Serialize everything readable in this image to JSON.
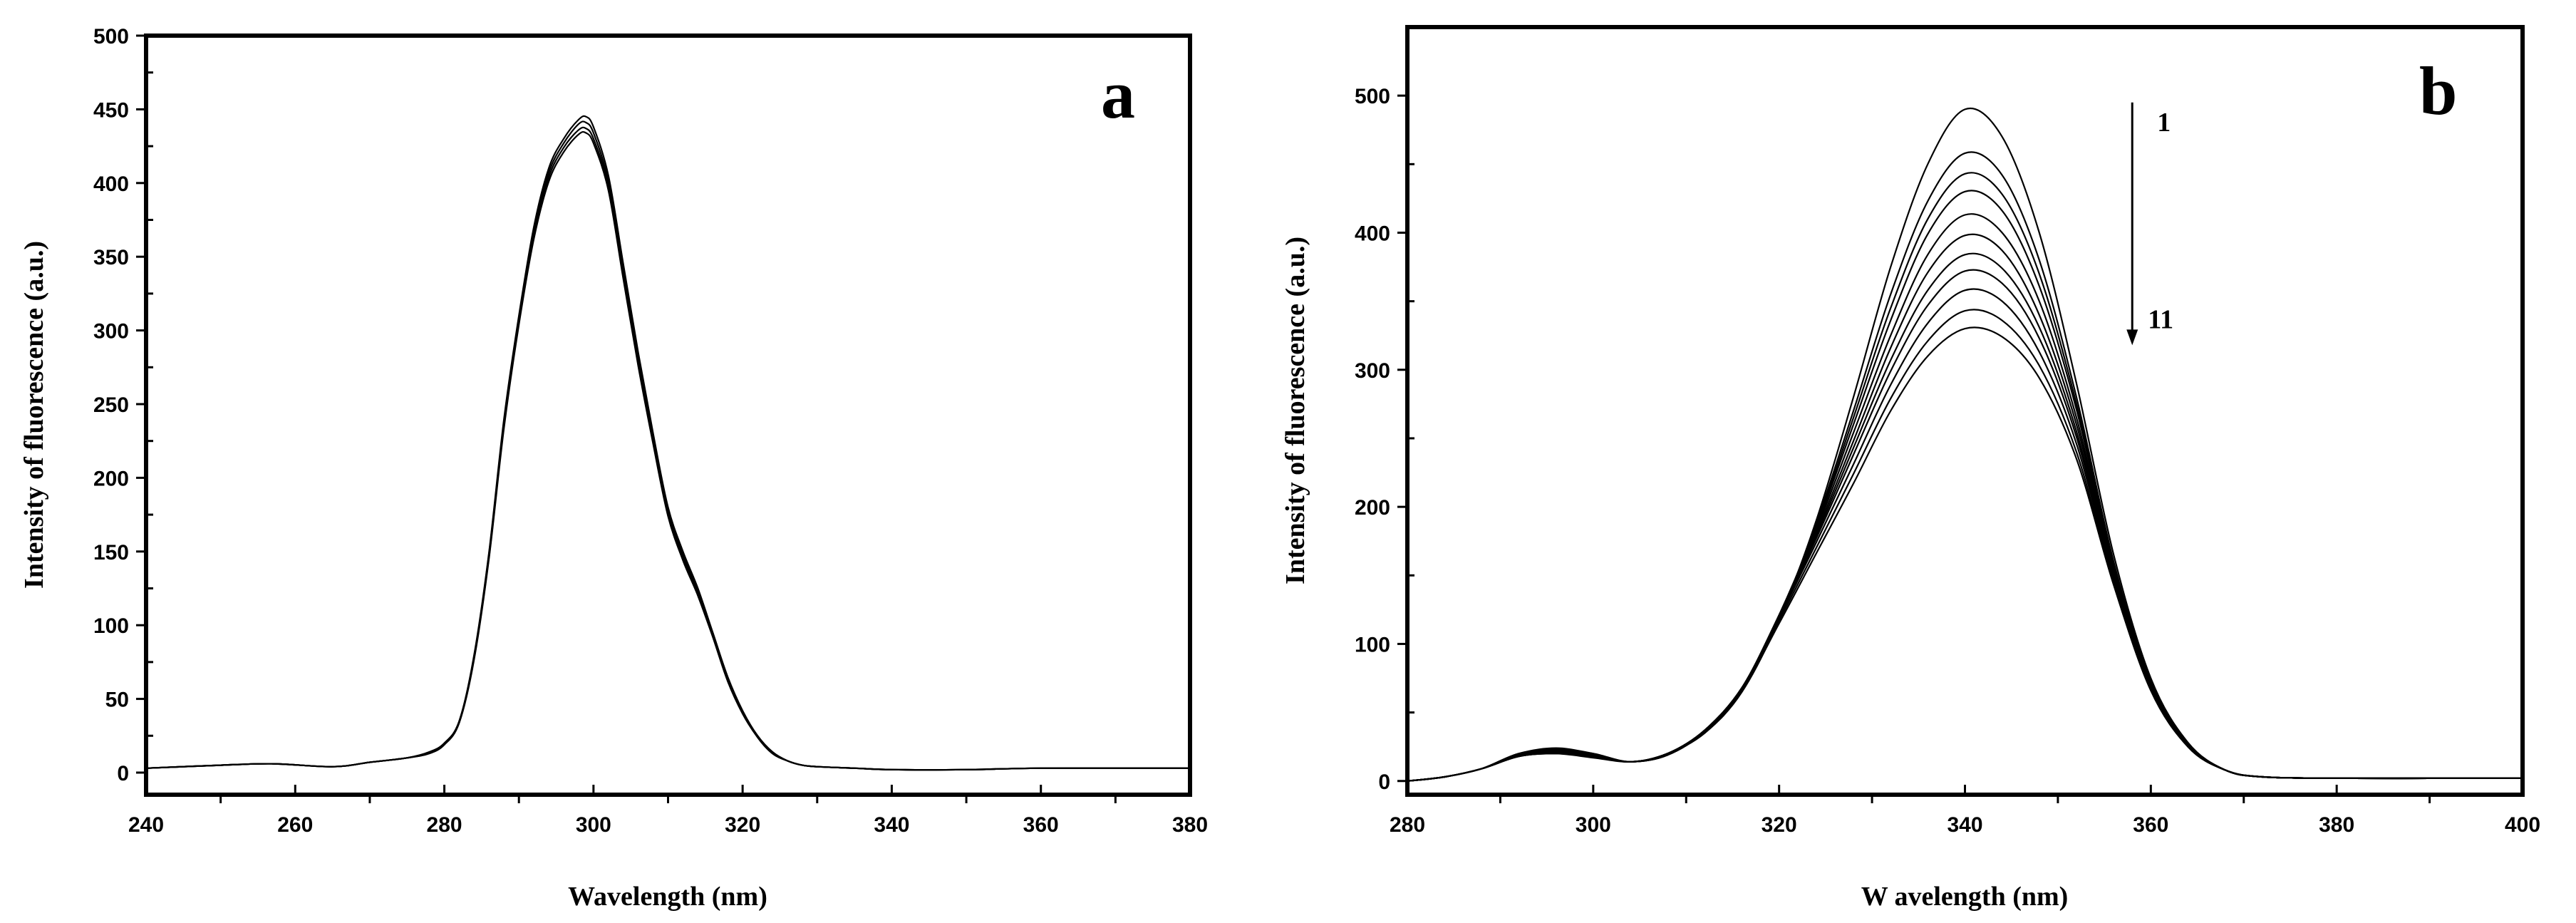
{
  "chart_data": [
    {
      "type": "line",
      "panel_label": "a",
      "xlabel": "Wavelength (nm)",
      "ylabel": "Intensity of fluorescence (a.u.)",
      "xlim": [
        240,
        380
      ],
      "ylim": [
        -15,
        500
      ],
      "xticks": [
        240,
        260,
        280,
        300,
        320,
        340,
        360,
        380
      ],
      "yticks": [
        0,
        50,
        100,
        150,
        200,
        250,
        300,
        350,
        400,
        450,
        500
      ],
      "x": [
        240,
        250,
        257,
        265,
        270,
        275,
        278,
        280,
        282,
        284,
        286,
        288,
        290,
        292,
        294,
        296,
        298,
        299,
        300,
        302,
        304,
        306,
        308,
        310,
        312,
        314,
        316,
        318,
        320,
        322,
        324,
        326,
        328,
        330,
        335,
        340,
        350,
        360,
        380
      ],
      "series": [
        {
          "values": [
            3,
            5,
            6,
            4,
            7,
            10,
            14,
            20,
            35,
            80,
            150,
            240,
            310,
            370,
            410,
            430,
            443,
            445,
            438,
            405,
            345,
            285,
            230,
            180,
            150,
            125,
            95,
            65,
            42,
            25,
            14,
            8,
            5,
            4,
            3,
            2,
            2,
            3,
            3
          ]
        },
        {
          "values": [
            3,
            5,
            6,
            4,
            7,
            10,
            14,
            20,
            35,
            79,
            149,
            238,
            308,
            368,
            407,
            427,
            440,
            441,
            434,
            401,
            341,
            282,
            227,
            178,
            148,
            123,
            94,
            64,
            41,
            25,
            14,
            8,
            5,
            4,
            3,
            2,
            2,
            3,
            3
          ]
        },
        {
          "values": [
            3,
            5,
            6,
            4,
            7,
            10,
            13,
            19,
            34,
            78,
            147,
            236,
            306,
            365,
            404,
            424,
            436,
            437,
            430,
            398,
            338,
            279,
            225,
            176,
            146,
            121,
            93,
            63,
            41,
            24,
            13,
            8,
            5,
            4,
            3,
            2,
            2,
            3,
            3
          ]
        },
        {
          "values": [
            3,
            5,
            6,
            4,
            7,
            10,
            13,
            19,
            34,
            77,
            146,
            234,
            304,
            362,
            401,
            421,
            433,
            434,
            427,
            395,
            335,
            276,
            223,
            174,
            144,
            120,
            92,
            62,
            40,
            24,
            13,
            8,
            5,
            4,
            3,
            2,
            2,
            3,
            3
          ]
        }
      ]
    },
    {
      "type": "line",
      "panel_label": "b",
      "xlabel": "W avelength (nm)",
      "ylabel": "Intensity of fluorescence (a.u.)",
      "xlim": [
        280,
        400
      ],
      "ylim": [
        -10,
        550
      ],
      "xticks": [
        280,
        300,
        320,
        340,
        360,
        380,
        400
      ],
      "yticks": [
        0,
        100,
        200,
        300,
        400,
        500
      ],
      "annotations": {
        "arrow_from": [
          358,
          495
        ],
        "arrow_to": [
          358,
          320
        ],
        "top_label": "1",
        "bottom_label": "11"
      },
      "x": [
        280,
        284,
        288,
        292,
        296,
        300,
        304,
        308,
        312,
        316,
        320,
        324,
        328,
        332,
        336,
        340,
        344,
        348,
        352,
        356,
        360,
        364,
        368,
        372,
        380,
        390,
        400
      ],
      "series": [
        {
          "values": [
            0,
            3,
            9,
            20,
            24,
            20,
            14,
            20,
            35,
            65,
            118,
            190,
            280,
            375,
            450,
            490,
            470,
            400,
            290,
            165,
            75,
            28,
            8,
            3,
            2,
            2,
            2
          ]
        },
        {
          "values": [
            0,
            3,
            9,
            20,
            23,
            20,
            14,
            20,
            36,
            66,
            119,
            188,
            270,
            355,
            423,
            458,
            442,
            380,
            280,
            160,
            73,
            27,
            8,
            3,
            2,
            2,
            2
          ]
        },
        {
          "values": [
            0,
            3,
            9,
            20,
            23,
            19,
            14,
            20,
            36,
            66,
            120,
            186,
            265,
            345,
            410,
            443,
            428,
            370,
            275,
            158,
            72,
            27,
            8,
            3,
            2,
            2,
            2
          ]
        },
        {
          "values": [
            0,
            3,
            9,
            19,
            22,
            19,
            14,
            20,
            37,
            67,
            121,
            185,
            260,
            336,
            399,
            430,
            416,
            361,
            271,
            156,
            72,
            27,
            8,
            3,
            2,
            2,
            2
          ]
        },
        {
          "values": [
            0,
            3,
            9,
            19,
            22,
            19,
            14,
            20,
            37,
            67,
            121,
            183,
            254,
            325,
            384,
            413,
            400,
            350,
            265,
            154,
            71,
            26,
            8,
            3,
            2,
            2,
            2
          ]
        },
        {
          "values": [
            0,
            3,
            9,
            19,
            22,
            19,
            14,
            20,
            37,
            68,
            121,
            181,
            248,
            316,
            371,
            398,
            387,
            340,
            260,
            152,
            70,
            26,
            8,
            3,
            2,
            2,
            2
          ]
        },
        {
          "values": [
            0,
            3,
            9,
            19,
            21,
            18,
            14,
            20,
            37,
            68,
            121,
            179,
            243,
            307,
            358,
            384,
            374,
            331,
            255,
            150,
            70,
            26,
            8,
            3,
            2,
            2,
            2
          ]
        },
        {
          "values": [
            0,
            3,
            9,
            18,
            21,
            18,
            14,
            19,
            37,
            68,
            120,
            177,
            238,
            299,
            347,
            372,
            363,
            323,
            251,
            149,
            69,
            26,
            8,
            3,
            2,
            2,
            2
          ]
        },
        {
          "values": [
            0,
            3,
            9,
            18,
            20,
            18,
            14,
            19,
            37,
            68,
            119,
            174,
            231,
            289,
            334,
            358,
            350,
            313,
            246,
            147,
            68,
            25,
            8,
            3,
            2,
            2,
            2
          ]
        },
        {
          "values": [
            0,
            3,
            9,
            18,
            20,
            18,
            14,
            19,
            36,
            67,
            117,
            170,
            224,
            279,
            321,
            343,
            336,
            303,
            240,
            145,
            67,
            25,
            8,
            3,
            2,
            2,
            2
          ]
        },
        {
          "values": [
            0,
            3,
            9,
            18,
            20,
            17,
            14,
            19,
            36,
            66,
            115,
            166,
            217,
            270,
            310,
            330,
            324,
            294,
            235,
            143,
            66,
            25,
            8,
            3,
            2,
            2,
            2
          ]
        }
      ]
    }
  ]
}
